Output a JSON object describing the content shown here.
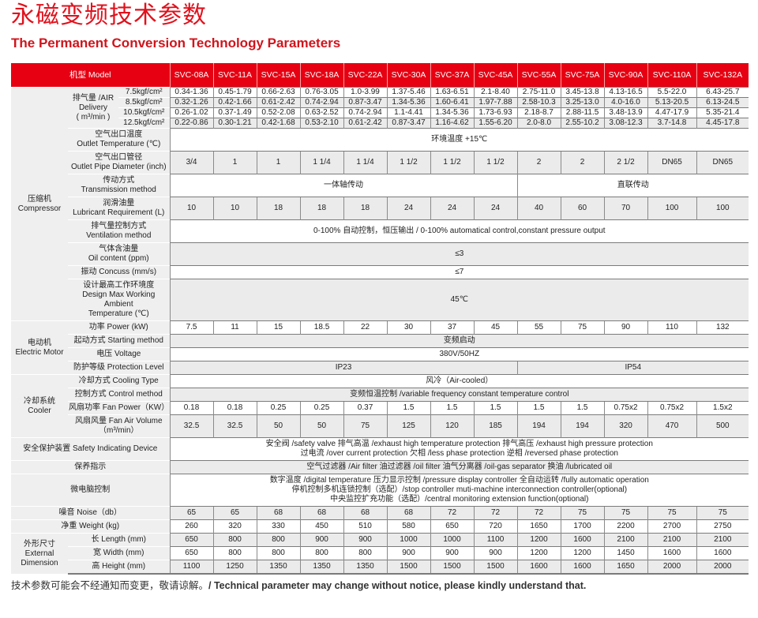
{
  "title_cn": "永磁变频技术参数",
  "title_en": "The Permanent Conversion Technology Parameters",
  "header": {
    "model_label": "机型 Model",
    "models": [
      "SVC-08A",
      "SVC-11A",
      "SVC-15A",
      "SVC-18A",
      "SVC-22A",
      "SVC-30A",
      "SVC-37A",
      "SVC-45A",
      "SVC-55A",
      "SVC-75A",
      "SVC-90A",
      "SVC-110A",
      "SVC-132A"
    ]
  },
  "colors": {
    "header_bg": "#e60012",
    "title": "#e1111c",
    "label_bg": "#efefef"
  },
  "sections": [
    {
      "group": "压缩机\nCompressor",
      "rows": [
        {
          "label": "排气量 /AIR\nDelivery\n( m³/min )",
          "sub": [
            {
              "p": "7.5kgf/cm²",
              "v": [
                "0.34-1.36",
                "0.45-1.79",
                "0.66-2.63",
                "0.76-3.05",
                "1.0-3.99",
                "1.37-5.46",
                "1.63-6.51",
                "2.1-8.40",
                "2.75-11.0",
                "3.45-13.8",
                "4.13-16.5",
                "5.5-22.0",
                "6.43-25.7"
              ]
            },
            {
              "p": "8.5kgf/cm²",
              "v": [
                "0.32-1.26",
                "0.42-1.66",
                "0.61-2.42",
                "0.74-2.94",
                "0.87-3.47",
                "1.34-5.36",
                "1.60-6.41",
                "1.97-7.88",
                "2.58-10.3",
                "3.25-13.0",
                "4.0-16.0",
                "5.13-20.5",
                "6.13-24.5"
              ]
            },
            {
              "p": "10.5kgf/cm²",
              "v": [
                "0.26-1.02",
                "0.37-1.49",
                "0.52-2.08",
                "0.63-2.52",
                "0.74-2.94",
                "1.1-4.41",
                "1.34-5.36",
                "1.73-6.93",
                "2.18-8.7",
                "2.88-11.5",
                "3.48-13.9",
                "4.47-17.9",
                "5.35-21.4"
              ]
            },
            {
              "p": "12.5kgf/cm²",
              "v": [
                "0.22-0.86",
                "0.30-1.21",
                "0.42-1.68",
                "0.53-2.10",
                "0.61-2.42",
                "0.87-3.47",
                "1.16-4.62",
                "1.55-6.20",
                "2.0-8.0",
                "2.55-10.2",
                "3.08-12.3",
                "3.7-14.8",
                "4.45-17.8"
              ]
            }
          ]
        },
        {
          "label": "空气出口温度\nOutlet Temperature (℃)",
          "merged": [
            {
              "t": "环境温度 +15℃",
              "span": 13
            }
          ]
        },
        {
          "label": "空气出口管径\nOutlet Pipe Diameter (inch)",
          "gray": true,
          "v": [
            "3/4",
            "1",
            "1",
            "1 1/4",
            "1 1/4",
            "1 1/2",
            "1 1/2",
            "1 1/2",
            "2",
            "2",
            "2 1/2",
            "DN65",
            "DN65"
          ]
        },
        {
          "label": "传动方式\nTransmission method",
          "merged": [
            {
              "t": "一体轴传动",
              "span": 8
            },
            {
              "t": "直联传动",
              "span": 5
            }
          ]
        },
        {
          "label": "润滑油量\nLubricant Requirement (L)",
          "gray": true,
          "v": [
            "10",
            "10",
            "18",
            "18",
            "18",
            "24",
            "24",
            "24",
            "40",
            "60",
            "70",
            "100",
            "100"
          ]
        },
        {
          "label": "排气量控制方式\nVentilation method",
          "merged": [
            {
              "t": "0-100% 自动控制，恒压输出 / 0-100% automatical control,constant pressure output",
              "span": 13
            }
          ]
        },
        {
          "label": "气体含油量\nOil content (ppm)",
          "gray": true,
          "merged": [
            {
              "t": "≤3",
              "span": 13
            }
          ]
        },
        {
          "label": "振动 Concuss (mm/s)",
          "merged": [
            {
              "t": "≤7",
              "span": 13
            }
          ]
        },
        {
          "label": "设计最高工作环境度\nDesign Max Working Ambient\nTemperature (℃)",
          "gray": true,
          "merged": [
            {
              "t": "45℃",
              "span": 13
            }
          ]
        }
      ]
    },
    {
      "group": "电动机\nElectric Motor",
      "rows": [
        {
          "label": "功率 Power (kW)",
          "v": [
            "7.5",
            "11",
            "15",
            "18.5",
            "22",
            "30",
            "37",
            "45",
            "55",
            "75",
            "90",
            "110",
            "132"
          ]
        },
        {
          "label": "起动方式 Starting method",
          "gray": true,
          "merged": [
            {
              "t": "变频启动",
              "span": 13
            }
          ]
        },
        {
          "label": "电压 Voltage",
          "merged": [
            {
              "t": "380V/50HZ",
              "span": 13
            }
          ]
        },
        {
          "label": "防护等级 Protection Level",
          "gray": true,
          "merged": [
            {
              "t": "IP23",
              "span": 8
            },
            {
              "t": "IP54",
              "span": 5
            }
          ]
        }
      ]
    },
    {
      "group": "冷却系统\nCooler",
      "rows": [
        {
          "label": "冷却方式 Cooling Type",
          "merged": [
            {
              "t": "风冷（Air-cooled）",
              "span": 13
            }
          ]
        },
        {
          "label": "控制方式 Control method",
          "gray": true,
          "merged": [
            {
              "t": "变频恒温控制 /variable frequency constant temperature control",
              "span": 13
            }
          ]
        },
        {
          "label": "风扇功率 Fan Power（KW）",
          "v": [
            "0.18",
            "0.18",
            "0.25",
            "0.25",
            "0.37",
            "1.5",
            "1.5",
            "1.5",
            "1.5",
            "1.5",
            "0.75x2",
            "0.75x2",
            "1.5x2"
          ]
        },
        {
          "label": "风扇风量 Fan Air Volume（m³/min）",
          "gray": true,
          "v": [
            "32.5",
            "32.5",
            "50",
            "50",
            "75",
            "125",
            "120",
            "185",
            "194",
            "194",
            "320",
            "470",
            "500"
          ]
        }
      ]
    },
    {
      "group": null,
      "rows": [
        {
          "label": "安全保护装置 Safety Indicating Device",
          "merged": [
            {
              "t": "安全阀 /safety valve  排气高温 /exhaust high temperature protection  排气高压 /exhaust high pressure protection\n过电流 /over current protection  欠相 /less phase protection  逆相 /reversed phase  protection",
              "span": 13
            }
          ]
        },
        {
          "label": "保养指示",
          "gray": true,
          "merged": [
            {
              "t": "空气过滤器 /Air filter  油过滤器 /oil filter   油气分离器 /oil-gas separator  换油 /lubricated oil",
              "span": 13
            }
          ]
        },
        {
          "label": "微电脑控制",
          "merged": [
            {
              "t": "数字温度 /digital temperature  压力显示控制 /pressure display controller  全自动运转 /fully automatic operation\n停机控制多机连锁控制（选配）/stop controller muti-machine interconnection controller(optional)\n中央监控扩充功能（选配）/central monitoring extension function(optional)",
              "span": 13
            }
          ]
        },
        {
          "label": "噪音 Noise（db）",
          "gray": true,
          "v": [
            "65",
            "65",
            "68",
            "68",
            "68",
            "68",
            "72",
            "72",
            "72",
            "75",
            "75",
            "75",
            "75"
          ]
        },
        {
          "label": "净重 Weight (kg)",
          "v": [
            "260",
            "320",
            "330",
            "450",
            "510",
            "580",
            "650",
            "720",
            "1650",
            "1700",
            "2200",
            "2700",
            "2750"
          ]
        }
      ]
    },
    {
      "group": "外形尺寸\nExternal\nDimension",
      "rows": [
        {
          "label": "长 Length  (mm)",
          "gray": true,
          "v": [
            "650",
            "800",
            "800",
            "900",
            "900",
            "1000",
            "1000",
            "1100",
            "1200",
            "1600",
            "2100",
            "2100",
            "2100"
          ]
        },
        {
          "label": "宽 Width   (mm)",
          "v": [
            "650",
            "800",
            "800",
            "800",
            "800",
            "900",
            "900",
            "900",
            "1200",
            "1200",
            "1450",
            "1600",
            "1600"
          ]
        },
        {
          "label": "高 Height  (mm)",
          "gray": true,
          "v": [
            "1100",
            "1250",
            "1350",
            "1350",
            "1350",
            "1500",
            "1500",
            "1500",
            "1600",
            "1600",
            "1650",
            "2000",
            "2000"
          ]
        }
      ]
    }
  ],
  "footnote_cn": "技术参数可能会不经通知而变更，敬请谅解。",
  "footnote_en": "/ Technical parameter may change without notice, please kindly understand that."
}
